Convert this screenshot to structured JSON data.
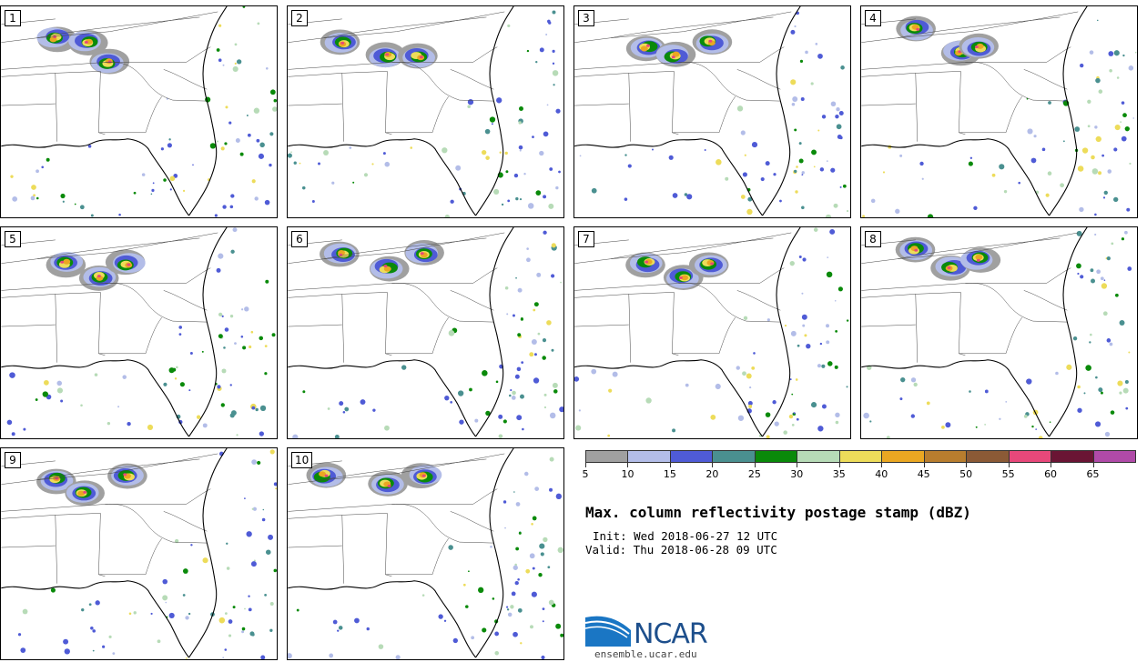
{
  "title": "Max. column reflectivity postage stamp (dBZ)",
  "init": "Init: Wed 2018-06-27 12 UTC",
  "valid": "Valid: Thu 2018-06-28 09 UTC",
  "logo_text": "NCAR",
  "site": "ensemble.ucar.edu",
  "members": [
    "1",
    "2",
    "3",
    "4",
    "5",
    "6",
    "7",
    "8",
    "9",
    "10"
  ],
  "colorbar": {
    "labels": [
      "5",
      "10",
      "15",
      "20",
      "25",
      "30",
      "35",
      "40",
      "45",
      "50",
      "55",
      "60",
      "65"
    ],
    "colors": [
      "#a0a0a0",
      "#b3bde8",
      "#4f5bd6",
      "#4a9090",
      "#0a8a0a",
      "#b7dbb7",
      "#eddc5a",
      "#eaa722",
      "#b87d2e",
      "#8b5a36",
      "#e8487a",
      "#6a1534",
      "#b04aa8"
    ]
  }
}
